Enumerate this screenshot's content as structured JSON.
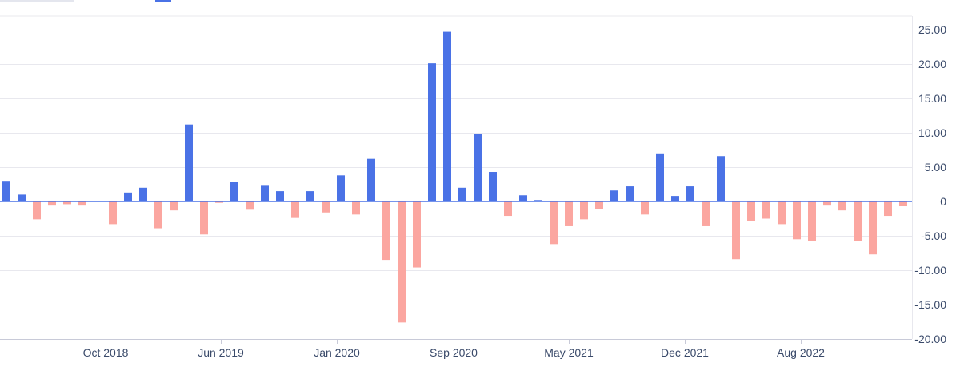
{
  "colors": {
    "positive": "#4a72e6",
    "negative": "#fba6a0",
    "grid": "#e8e8ee",
    "zero": "#4a72e6",
    "tick_text": "#3a4a6a",
    "axis": "#c8cad8"
  },
  "chart_data": {
    "type": "bar",
    "title": "",
    "xlabel": "",
    "ylabel": "",
    "ylim": [
      -20,
      25
    ],
    "y_ticks": [
      {
        "value": 25,
        "label": "25.00"
      },
      {
        "value": 20,
        "label": "20.00"
      },
      {
        "value": 15,
        "label": "15.00"
      },
      {
        "value": 10,
        "label": "10.00"
      },
      {
        "value": 5,
        "label": "5.00"
      },
      {
        "value": 0,
        "label": "0"
      },
      {
        "value": -5,
        "label": "-5.00"
      },
      {
        "value": -10,
        "label": "-10.00"
      },
      {
        "value": -15,
        "label": "-15.00"
      },
      {
        "value": -20,
        "label": "-20.00"
      }
    ],
    "x_ticks": [
      "Oct 2018",
      "Jun 2019",
      "Jan 2020",
      "Sep 2020",
      "May 2021",
      "Dec 2021",
      "Aug 2022"
    ],
    "grid": true,
    "y_axis_position": "right",
    "values": [
      3.0,
      1.0,
      -2.6,
      -0.6,
      -0.4,
      -0.6,
      0,
      -3.3,
      1.3,
      2.0,
      -3.9,
      -1.3,
      11.2,
      -4.8,
      -0.2,
      2.8,
      -1.2,
      2.4,
      1.5,
      -2.4,
      1.5,
      -1.6,
      3.8,
      -1.9,
      6.2,
      -8.5,
      -17.6,
      -9.6,
      20.1,
      24.7,
      2.0,
      9.8,
      4.3,
      -2.1,
      0.9,
      0.2,
      -6.2,
      -3.6,
      -2.6,
      -1.1,
      1.6,
      2.2,
      -1.9,
      7.0,
      0.8,
      2.2,
      -3.6,
      6.6,
      -8.4,
      -2.9,
      -2.5,
      -3.3,
      -5.5,
      -5.7,
      -0.6,
      -1.3,
      -5.8,
      -7.7,
      -2.1,
      -0.7
    ]
  }
}
